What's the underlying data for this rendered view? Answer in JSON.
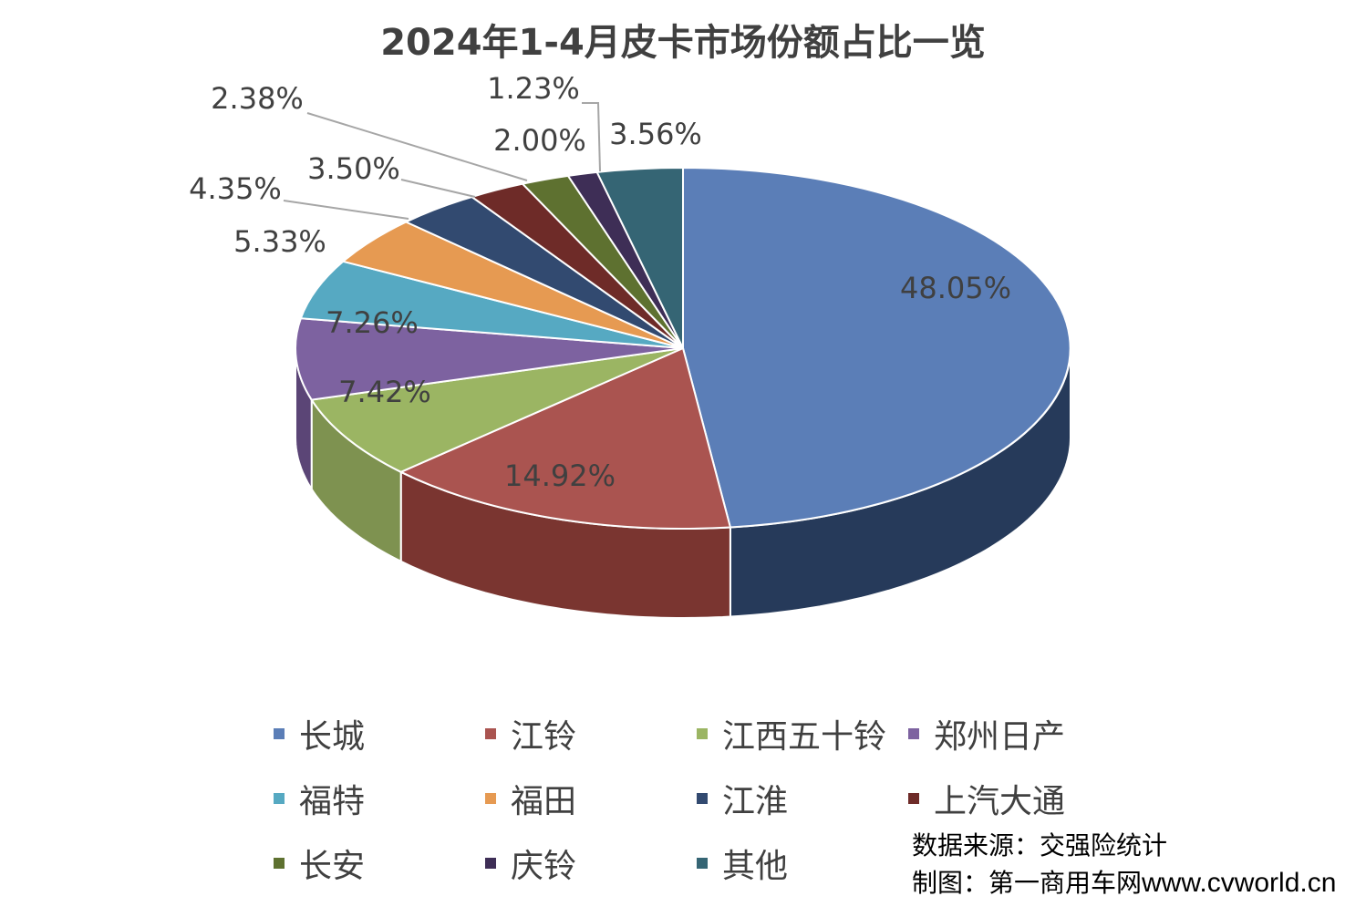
{
  "title": "2024年1-4月皮卡市场份额占比一览",
  "chart_data": {
    "type": "pie",
    "title": "2024年1-4月皮卡市场份额占比一览",
    "slices": [
      {
        "label": "长城",
        "value": 48.05,
        "display": "48.05%",
        "color": "#5B7EB7",
        "side": "#263A5A"
      },
      {
        "label": "江铃",
        "value": 14.92,
        "display": "14.92%",
        "color": "#AA5450",
        "side": "#7A3530"
      },
      {
        "label": "江西五十铃",
        "value": 7.42,
        "display": "7.42%",
        "color": "#9BB563",
        "side": "#7E9250"
      },
      {
        "label": "郑州日产",
        "value": 7.26,
        "display": "7.26%",
        "color": "#7D62A0",
        "side": "#5B4576"
      },
      {
        "label": "福特",
        "value": 5.33,
        "display": "5.33%",
        "color": "#56A9C2",
        "side": "#3C7F93"
      },
      {
        "label": "福田",
        "value": 4.35,
        "display": "4.35%",
        "color": "#E69A52",
        "side": "#B0723A"
      },
      {
        "label": "江淮",
        "value": 3.5,
        "display": "3.50%",
        "color": "#324A70",
        "side": "#22344F"
      },
      {
        "label": "上汽大通",
        "value": 2.38,
        "display": "2.38%",
        "color": "#6E2B28",
        "side": "#4E1E1C"
      },
      {
        "label": "长安",
        "value": 2.0,
        "display": "2.00%",
        "color": "#5E7130",
        "side": "#44521F"
      },
      {
        "label": "庆铃",
        "value": 1.23,
        "display": "1.23%",
        "color": "#3E2E56",
        "side": "#2A1F3B"
      },
      {
        "label": "其他",
        "value": 3.56,
        "display": "3.56%",
        "color": "#356574",
        "side": "#244752"
      }
    ],
    "legend_position": "bottom"
  },
  "legend": [
    {
      "label": "长城",
      "color": "#5B7EB7"
    },
    {
      "label": "江铃",
      "color": "#AA5450"
    },
    {
      "label": "江西五十铃",
      "color": "#9BB563"
    },
    {
      "label": "郑州日产",
      "color": "#7D62A0"
    },
    {
      "label": "福特",
      "color": "#56A9C2"
    },
    {
      "label": "福田",
      "color": "#E69A52"
    },
    {
      "label": "江淮",
      "color": "#324A70"
    },
    {
      "label": "上汽大通",
      "color": "#6E2B28"
    },
    {
      "label": "长安",
      "color": "#5E7130"
    },
    {
      "label": "庆铃",
      "color": "#3E2E56"
    },
    {
      "label": "其他",
      "color": "#356574"
    }
  ],
  "footnote": {
    "source": "数据来源：交强险统计",
    "credit": "制图：第一商用车网",
    "url": "www.cvworld.cn"
  }
}
